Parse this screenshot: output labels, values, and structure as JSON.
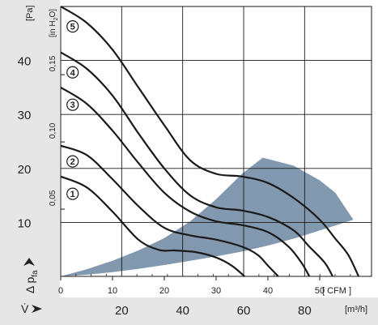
{
  "chart_data": {
    "type": "line",
    "colors": {
      "band": "#e6e6e6",
      "region": "#8198ae",
      "curve": "#1a1a1a",
      "grid": "#1a1a1a"
    },
    "y_pa": {
      "unit": "[Pa]",
      "ticks": [
        "10",
        "20",
        "30",
        "40"
      ],
      "range": [
        0,
        50
      ]
    },
    "y_inh2o": {
      "unit_parts": [
        "[in H",
        "2",
        "O]"
      ],
      "ticks": [
        "0,05",
        "0,10",
        "0,15"
      ],
      "values": [
        0.05,
        0.1,
        0.15
      ]
    },
    "x_cfm": {
      "unit": "[ CFM ]",
      "ticks": [
        "0",
        "10",
        "20",
        "30",
        "40",
        "50"
      ],
      "range": [
        0,
        60
      ]
    },
    "x_m3h": {
      "unit": "[m³/h]",
      "ticks": [
        "20",
        "40",
        "60",
        "80"
      ],
      "values": [
        20,
        40,
        60,
        80
      ]
    },
    "ylabel": {
      "delta": "Δ p",
      "sub": "fa"
    },
    "xlabel": "V̇",
    "operating_region": [
      [
        0,
        0.0
      ],
      [
        5,
        1.3
      ],
      [
        10,
        2.9
      ],
      [
        15,
        4.8
      ],
      [
        20,
        7.1
      ],
      [
        25,
        10.2
      ],
      [
        30,
        14.3
      ],
      [
        35,
        19.0
      ],
      [
        39,
        22.0
      ],
      [
        45,
        20.5
      ],
      [
        50,
        17.8
      ],
      [
        53,
        15.5
      ],
      [
        56.5,
        10.5
      ],
      [
        50,
        8.5
      ],
      [
        45,
        7.0
      ],
      [
        40,
        5.7
      ],
      [
        35,
        4.6
      ],
      [
        30,
        3.7
      ],
      [
        25,
        2.9
      ],
      [
        20,
        2.1
      ],
      [
        15,
        1.4
      ],
      [
        10,
        0.8
      ],
      [
        5,
        0.3
      ],
      [
        0,
        0.0
      ]
    ],
    "series": [
      {
        "name": "1",
        "label_at": [
          2.3,
          15.3
        ],
        "points": [
          [
            0,
            18.5
          ],
          [
            5,
            16.5
          ],
          [
            10,
            12.0
          ],
          [
            15,
            6.8
          ],
          [
            19,
            4.9
          ],
          [
            22,
            4.8
          ],
          [
            26,
            4.5
          ],
          [
            30,
            3.5
          ],
          [
            33,
            2.0
          ],
          [
            35.5,
            0
          ]
        ]
      },
      {
        "name": "2",
        "label_at": [
          2.3,
          21.3
        ],
        "points": [
          [
            0,
            24.2
          ],
          [
            5,
            22.5
          ],
          [
            10,
            18.0
          ],
          [
            15,
            13.0
          ],
          [
            20,
            9.0
          ],
          [
            25,
            7.6
          ],
          [
            30,
            6.8
          ],
          [
            35,
            5.5
          ],
          [
            38,
            4.0
          ],
          [
            40,
            2.0
          ],
          [
            42,
            0
          ]
        ]
      },
      {
        "name": "3",
        "label_at": [
          2.3,
          31.8
        ],
        "points": [
          [
            0,
            35.0
          ],
          [
            5,
            32.0
          ],
          [
            10,
            27.0
          ],
          [
            15,
            21.0
          ],
          [
            20,
            15.5
          ],
          [
            25,
            12.0
          ],
          [
            30,
            10.2
          ],
          [
            35,
            9.5
          ],
          [
            40,
            8.2
          ],
          [
            44,
            5.5
          ],
          [
            46.5,
            2.5
          ],
          [
            48,
            0
          ]
        ]
      },
      {
        "name": "4",
        "label_at": [
          2.3,
          37.8
        ],
        "points": [
          [
            0,
            41.5
          ],
          [
            5,
            38.5
          ],
          [
            10,
            33.5
          ],
          [
            15,
            26.5
          ],
          [
            20,
            20.0
          ],
          [
            25,
            15.0
          ],
          [
            30,
            12.8
          ],
          [
            35,
            12.2
          ],
          [
            40,
            11.0
          ],
          [
            45,
            8.5
          ],
          [
            48,
            5.5
          ],
          [
            51,
            2.5
          ],
          [
            52.5,
            0
          ]
        ]
      },
      {
        "name": "5",
        "label_at": [
          2.3,
          46.3
        ],
        "points": [
          [
            0,
            50.0
          ],
          [
            5,
            47.0
          ],
          [
            10,
            42.0
          ],
          [
            15,
            35.0
          ],
          [
            20,
            28.0
          ],
          [
            25,
            21.5
          ],
          [
            30,
            19.0
          ],
          [
            35,
            18.5
          ],
          [
            40,
            17.3
          ],
          [
            45,
            14.5
          ],
          [
            50,
            10.5
          ],
          [
            53,
            7.0
          ],
          [
            55.5,
            4.0
          ],
          [
            57.5,
            0
          ]
        ]
      }
    ]
  }
}
